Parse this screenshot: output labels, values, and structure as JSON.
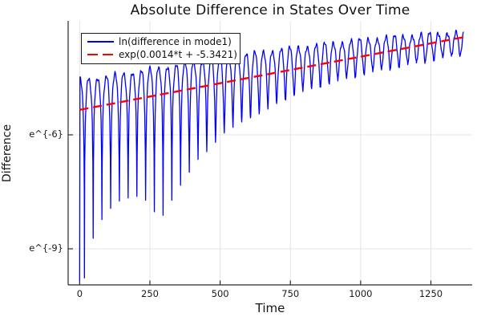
{
  "chart_data": {
    "type": "line",
    "title": "Absolute Difference in States Over Time",
    "xlabel": "Time",
    "ylabel": "Difference",
    "x_ticks": [
      0,
      250,
      500,
      750,
      1000,
      1250
    ],
    "y_ticks": [
      {
        "value": -6,
        "label": "e^{-6}"
      },
      {
        "value": -9,
        "label": "e^{-9}"
      }
    ],
    "xlim": [
      -41,
      1397
    ],
    "ylim": [
      -9.95,
      -3.0
    ],
    "y_scale": "ln",
    "grid": true,
    "legend_position": "top-left",
    "colors": {
      "series1": "#0000ff",
      "series2": "#ff0000",
      "gridline": "#e4e4e4",
      "axis": "#2a2a2a",
      "text": "#151515"
    },
    "series": [
      {
        "name": "ln(difference in mode1)",
        "color": "#0000ff",
        "style": "solid",
        "model": {
          "description": "ln|state difference|: arches of ln|sin| around exponential trend, zeros every arch_period, dip/peak envelopes relative to trend line",
          "trend_slope": 0.0014,
          "trend_intercept": -5.3421,
          "arch_period": 31.1,
          "first_zero_t": 17,
          "t_start": 0,
          "t_end": 1367,
          "start_value": -9.85,
          "floor_value": -9.88,
          "peak_offset_points": [
            [
              0,
              0.78
            ],
            [
              150,
              0.74
            ],
            [
              300,
              0.71
            ],
            [
              500,
              0.67
            ],
            [
              700,
              0.6
            ],
            [
              800,
              0.55
            ],
            [
              900,
              0.5
            ],
            [
              1000,
              0.45
            ],
            [
              1100,
              0.38
            ],
            [
              1200,
              0.3
            ],
            [
              1300,
              0.21
            ],
            [
              1370,
              0.13
            ]
          ],
          "dip_offset_points": [
            [
              0,
              6.0
            ],
            [
              17,
              4.45
            ],
            [
              48,
              3.45
            ],
            [
              79,
              3.0
            ],
            [
              110,
              2.75
            ],
            [
              141,
              2.6
            ],
            [
              172,
              2.56
            ],
            [
              203,
              2.56
            ],
            [
              234,
              2.7
            ],
            [
              265,
              3.05
            ],
            [
              296,
              3.2
            ],
            [
              327,
              2.85
            ],
            [
              358,
              2.5
            ],
            [
              389,
              2.2
            ],
            [
              420,
              1.9
            ],
            [
              459,
              1.7
            ],
            [
              488,
              1.5
            ],
            [
              516,
              1.32
            ],
            [
              579,
              1.12
            ],
            [
              650,
              0.98
            ],
            [
              700,
              0.82
            ],
            [
              800,
              0.62
            ],
            [
              900,
              0.54
            ],
            [
              1000,
              0.47
            ],
            [
              1100,
              0.45
            ],
            [
              1250,
              0.44
            ],
            [
              1370,
              0.44
            ]
          ]
        }
      },
      {
        "name": "exp(0.0014*t + -5.3421)",
        "color": "#ff0000",
        "style": "dashed",
        "slope": 0.0014,
        "intercept": -5.3421,
        "t_start": 0,
        "t_end": 1367
      }
    ]
  }
}
